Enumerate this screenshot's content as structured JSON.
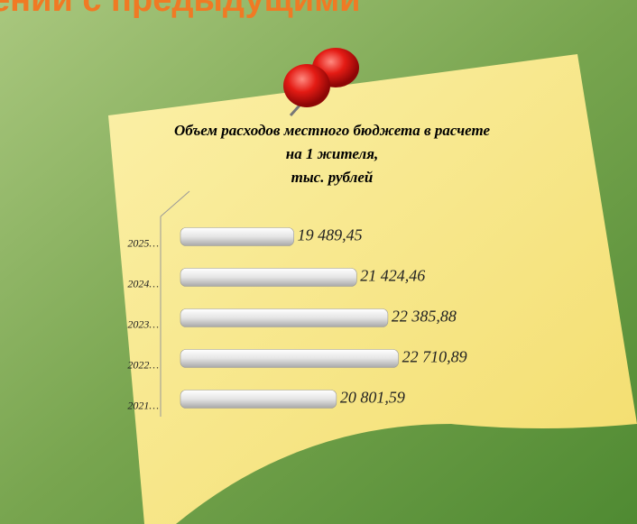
{
  "header": "ений с предыдущими",
  "chart_data": {
    "type": "hbar",
    "title_lines": [
      "Объем расходов местного бюджета в расчете",
      "на 1 жителя,",
      "тыс. рублей"
    ],
    "categories": [
      "2021…",
      "2022…",
      "2023…",
      "2024…",
      "2025…"
    ],
    "values": [
      20801.59,
      22710.89,
      22385.88,
      21424.46,
      19489.45
    ],
    "value_labels": [
      "20 801,59",
      "22 710,89",
      "22 385,88",
      "21 424,46",
      "19 489,45"
    ],
    "xlim": [
      16000,
      24000
    ],
    "color": "#e8e8e8"
  }
}
